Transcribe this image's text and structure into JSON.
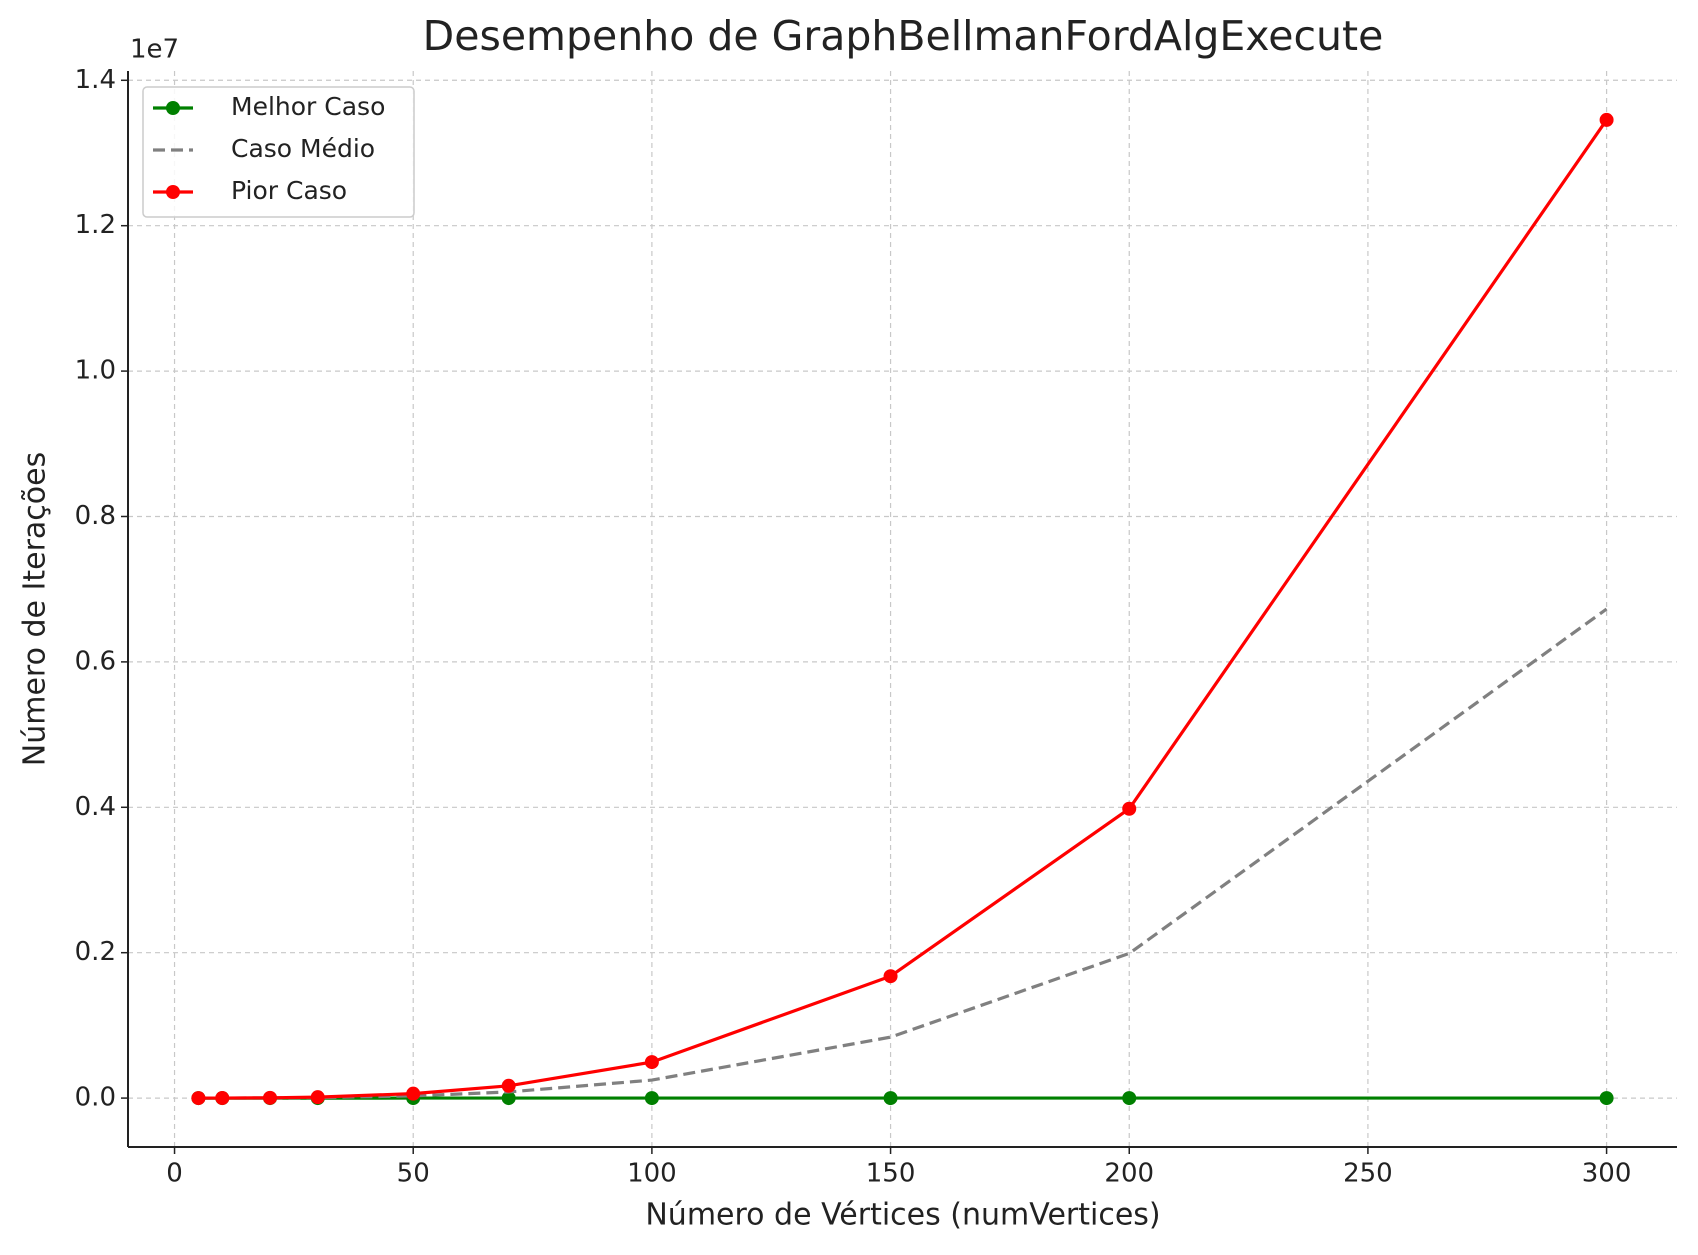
{
  "chart_data": {
    "type": "line",
    "title": "Desempenho de GraphBellmanFordAlgExecute",
    "x_label": "Número de Vértices (numVertices)",
    "y_label": "Número de Iterações",
    "y_offset_label": "1e7",
    "x": [
      5,
      10,
      20,
      30,
      50,
      70,
      100,
      150,
      200,
      300
    ],
    "series": [
      {
        "name": "Melhor Caso",
        "color": "#008000",
        "linestyle": "solid",
        "marker": true,
        "values": [
          4,
          9,
          19,
          29,
          49,
          69,
          99,
          149,
          199,
          299
        ]
      },
      {
        "name": "Caso Médio",
        "color": "#808080",
        "linestyle": "dashed",
        "marker": false,
        "values": [
          25,
          225,
          1900,
          6525,
          30625,
          84525,
          247500,
          838125,
          1990000,
          6727500
        ]
      },
      {
        "name": "Pior Caso",
        "color": "#ff0000",
        "linestyle": "solid",
        "marker": true,
        "values": [
          50,
          450,
          3800,
          13050,
          61250,
          169050,
          495000,
          1676250,
          3980000,
          13455000
        ]
      }
    ],
    "xlim": [
      -9.75,
      314.75
    ],
    "xticks": [
      0,
      50,
      100,
      150,
      200,
      250,
      300
    ],
    "ylim": [
      -672750,
      14127750
    ],
    "yticks": [
      {
        "value": 0,
        "label": "0.0"
      },
      {
        "value": 2000000,
        "label": "0.2"
      },
      {
        "value": 4000000,
        "label": "0.4"
      },
      {
        "value": 6000000,
        "label": "0.6"
      },
      {
        "value": 8000000,
        "label": "0.8"
      },
      {
        "value": 10000000,
        "label": "1.0"
      },
      {
        "value": 12000000,
        "label": "1.2"
      },
      {
        "value": 14000000,
        "label": "1.4"
      }
    ],
    "grid": true,
    "legend": "upper left"
  }
}
